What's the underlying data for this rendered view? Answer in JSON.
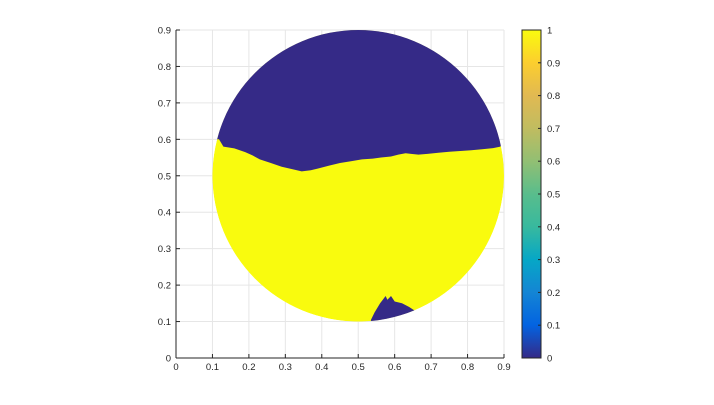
{
  "chart_data": {
    "type": "heatmap",
    "title": "",
    "xlabel": "",
    "ylabel": "",
    "xlim": [
      0,
      0.9
    ],
    "ylim": [
      0,
      0.9
    ],
    "grid": true,
    "xticks": [
      "0",
      "0.1",
      "0.2",
      "0.3",
      "0.4",
      "0.5",
      "0.6",
      "0.7",
      "0.8",
      "0.9"
    ],
    "yticks": [
      "0",
      "0.1",
      "0.2",
      "0.3",
      "0.4",
      "0.5",
      "0.6",
      "0.7",
      "0.8",
      "0.9"
    ],
    "domain": {
      "shape": "disk",
      "center": [
        0.5,
        0.5
      ],
      "radius": 0.4
    },
    "regions": [
      {
        "value": 0,
        "boundary": [
          [
            0.118,
            0.6
          ],
          [
            0.13,
            0.58
          ],
          [
            0.16,
            0.575
          ],
          [
            0.19,
            0.565
          ],
          [
            0.21,
            0.556
          ],
          [
            0.23,
            0.545
          ],
          [
            0.26,
            0.535
          ],
          [
            0.29,
            0.525
          ],
          [
            0.32,
            0.518
          ],
          [
            0.345,
            0.512
          ],
          [
            0.37,
            0.515
          ],
          [
            0.39,
            0.52
          ],
          [
            0.42,
            0.528
          ],
          [
            0.45,
            0.535
          ],
          [
            0.48,
            0.54
          ],
          [
            0.51,
            0.545
          ],
          [
            0.54,
            0.547
          ],
          [
            0.56,
            0.55
          ],
          [
            0.59,
            0.553
          ],
          [
            0.61,
            0.558
          ],
          [
            0.63,
            0.562
          ],
          [
            0.645,
            0.56
          ],
          [
            0.665,
            0.558
          ],
          [
            0.69,
            0.56
          ],
          [
            0.72,
            0.563
          ],
          [
            0.75,
            0.566
          ],
          [
            0.78,
            0.568
          ],
          [
            0.81,
            0.57
          ],
          [
            0.84,
            0.573
          ],
          [
            0.87,
            0.576
          ],
          [
            0.89,
            0.58
          ],
          [
            0.895,
            0.59
          ]
        ]
      },
      {
        "value": 0,
        "boundary": [
          [
            0.535,
            0.105
          ],
          [
            0.545,
            0.125
          ],
          [
            0.56,
            0.15
          ],
          [
            0.575,
            0.17
          ],
          [
            0.58,
            0.16
          ],
          [
            0.59,
            0.17
          ],
          [
            0.6,
            0.155
          ],
          [
            0.62,
            0.15
          ],
          [
            0.64,
            0.14
          ],
          [
            0.655,
            0.13
          ]
        ]
      },
      {
        "value": 1,
        "description_value": "rest of disk"
      }
    ]
  },
  "colorbar": {
    "min": 0,
    "max": 1,
    "ticks": [
      "0",
      "0.1",
      "0.2",
      "0.3",
      "0.4",
      "0.5",
      "0.6",
      "0.7",
      "0.8",
      "0.9",
      "1"
    ],
    "colormap": "parula",
    "low_color": "#352a87",
    "high_color": "#f9fb0e"
  },
  "colors": {
    "region_low": "#352a87",
    "region_high": "#f9fb0e",
    "grid": "#e6e6e6",
    "axis": "#262626"
  }
}
